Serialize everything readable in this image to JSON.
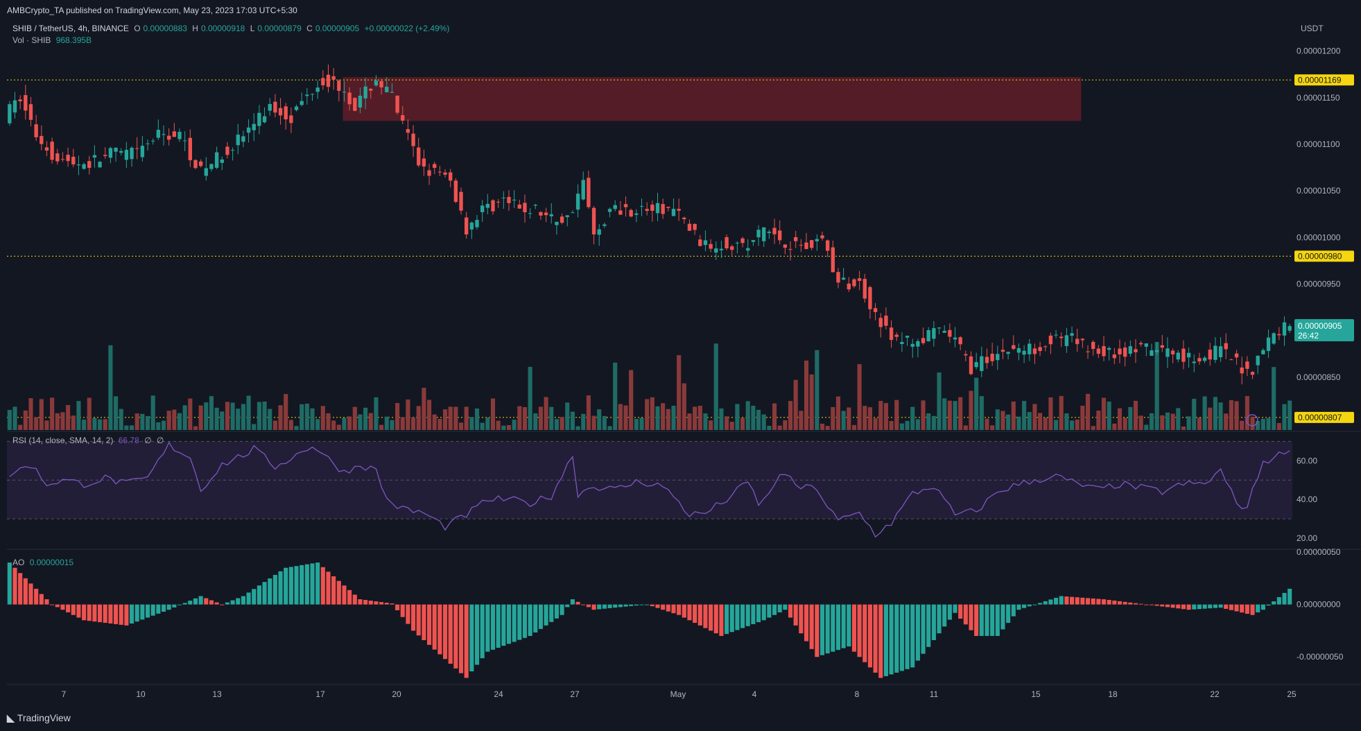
{
  "header": {
    "published": "AMBCrypto_TA published on TradingView.com, May 23, 2023 17:03 UTC+5:30",
    "symbol": "SHIB / TetherUS, 4h, BINANCE",
    "o_label": "O",
    "o": "0.00000883",
    "h_label": "H",
    "h": "0.00000918",
    "l_label": "L",
    "l": "0.00000879",
    "c_label": "C",
    "c": "0.00000905",
    "change": "+0.00000022 (+2.49%)",
    "vol_label": "Vol · SHIB",
    "vol": "968.395B",
    "currency": "USDT"
  },
  "rsi_legend": {
    "label": "RSI (14, close, SMA, 14, 2)",
    "value": "66.78",
    "extra1": "∅",
    "extra2": "∅"
  },
  "ao_legend": {
    "label": "AO",
    "value": "0.00000015"
  },
  "footer": {
    "brand": "TradingView"
  },
  "colors": {
    "bg": "#131722",
    "up": "#26a69a",
    "down": "#ef5350",
    "vol_up": "#1f6b65",
    "vol_down": "#8a3a3a",
    "rsi_line": "#7e57c2",
    "rsi_band": "#2a2240",
    "level": "#f5d60f",
    "zone": "#6b1f2a"
  },
  "chart_data": [
    {
      "type": "candlestick",
      "title": "SHIB / TetherUS, 4h, BINANCE",
      "ylabel": "USDT",
      "ylim": [
        7.935e-06,
        1.2265e-05
      ],
      "x_ticks": [
        "7",
        "10",
        "13",
        "17",
        "20",
        "24",
        "27",
        "May",
        "4",
        "8",
        "11",
        "15",
        "18",
        "22",
        "25"
      ],
      "y_ticks": [
        "0.00001200",
        "0.00001150",
        "0.00001100",
        "0.00001050",
        "0.00001000",
        "0.00000950",
        "0.00000900",
        "0.00000850"
      ],
      "price_labels": [
        "0.00001169",
        "0.00000980",
        "0.00000905",
        "26:42",
        "0.00000807"
      ],
      "horizontal_levels": [
        1.169e-05,
        9.8e-06,
        8.07e-06
      ],
      "resistance_zone": {
        "top": 1.172e-05,
        "bottom": 1.125e-05,
        "x_start_label": "18",
        "x_end_label": "16"
      },
      "anchors": [
        [
          0,
          1.13e-05
        ],
        [
          3,
          1.15e-05
        ],
        [
          6,
          1.11e-05
        ],
        [
          9,
          1.09e-05
        ],
        [
          12,
          1.08e-05
        ],
        [
          16,
          1.08e-05
        ],
        [
          20,
          1.09e-05
        ],
        [
          25,
          1.09e-05
        ],
        [
          29,
          1.11e-05
        ],
        [
          33,
          1.11e-05
        ],
        [
          37,
          1.07e-05
        ],
        [
          41,
          1.09e-05
        ],
        [
          45,
          1.11e-05
        ],
        [
          50,
          1.14e-05
        ],
        [
          54,
          1.13e-05
        ],
        [
          58,
          1.16e-05
        ],
        [
          60,
          1.17e-05
        ],
        [
          64,
          1.16e-05
        ],
        [
          66,
          1.14e-05
        ],
        [
          70,
          1.17e-05
        ],
        [
          73,
          1.15e-05
        ],
        [
          75,
          1.12e-05
        ],
        [
          78,
          1.08e-05
        ],
        [
          81,
          1.07e-05
        ],
        [
          84,
          1.06e-05
        ],
        [
          87,
          1.01e-05
        ],
        [
          90,
          1.03e-05
        ],
        [
          94,
          1.04e-05
        ],
        [
          97,
          1.03e-05
        ],
        [
          100,
          1.03e-05
        ],
        [
          103,
          1.02e-05
        ],
        [
          106,
          1.02e-05
        ],
        [
          109,
          1.06e-05
        ],
        [
          111,
          1e-05
        ],
        [
          114,
          1.03e-05
        ],
        [
          118,
          1.03e-05
        ],
        [
          122,
          1.03e-05
        ],
        [
          126,
          1.03e-05
        ],
        [
          129,
          1.01e-05
        ],
        [
          132,
          9.9e-06
        ],
        [
          136,
          9.95e-06
        ],
        [
          140,
          9.9e-06
        ],
        [
          143,
          1.01e-05
        ],
        [
          147,
          9.95e-06
        ],
        [
          151,
          9.9e-06
        ],
        [
          154,
          1e-05
        ],
        [
          157,
          9.5e-06
        ],
        [
          161,
          9.5e-06
        ],
        [
          164,
          9.2e-06
        ],
        [
          167,
          8.9e-06
        ],
        [
          170,
          8.9e-06
        ],
        [
          173,
          8.9e-06
        ],
        [
          176,
          9e-06
        ],
        [
          179,
          8.9e-06
        ],
        [
          182,
          8.6e-06
        ],
        [
          185,
          8.7e-06
        ],
        [
          189,
          8.8e-06
        ],
        [
          193,
          8.8e-06
        ],
        [
          197,
          8.9e-06
        ],
        [
          201,
          8.9e-06
        ],
        [
          205,
          8.8e-06
        ],
        [
          209,
          8.75e-06
        ],
        [
          213,
          8.8e-06
        ],
        [
          217,
          8.8e-06
        ],
        [
          221,
          8.75e-06
        ],
        [
          225,
          8.7e-06
        ],
        [
          229,
          8.8e-06
        ],
        [
          233,
          8.6e-06
        ],
        [
          235,
          8.6e-06
        ],
        [
          238,
          8.9e-06
        ],
        [
          241,
          9.05e-06
        ]
      ],
      "rsi": {
        "ylim": [
          15,
          73
        ],
        "y_ticks": [
          "60.00",
          "40.00",
          "20.00"
        ],
        "band": [
          30,
          70
        ],
        "mid": 50,
        "anchors": [
          [
            0,
            53
          ],
          [
            4,
            58
          ],
          [
            7,
            48
          ],
          [
            10,
            50
          ],
          [
            14,
            48
          ],
          [
            18,
            51
          ],
          [
            22,
            48
          ],
          [
            26,
            51
          ],
          [
            30,
            68
          ],
          [
            34,
            62
          ],
          [
            36,
            45
          ],
          [
            40,
            58
          ],
          [
            44,
            63
          ],
          [
            46,
            66
          ],
          [
            50,
            57
          ],
          [
            54,
            63
          ],
          [
            57,
            68
          ],
          [
            60,
            61
          ],
          [
            63,
            54
          ],
          [
            66,
            58
          ],
          [
            69,
            55
          ],
          [
            71,
            40
          ],
          [
            74,
            35
          ],
          [
            78,
            33
          ],
          [
            82,
            26
          ],
          [
            86,
            32
          ],
          [
            90,
            40
          ],
          [
            94,
            40
          ],
          [
            98,
            38
          ],
          [
            102,
            42
          ],
          [
            106,
            63
          ],
          [
            107,
            43
          ],
          [
            110,
            47
          ],
          [
            114,
            45
          ],
          [
            118,
            49
          ],
          [
            122,
            48
          ],
          [
            125,
            42
          ],
          [
            128,
            32
          ],
          [
            131,
            33
          ],
          [
            135,
            40
          ],
          [
            139,
            49
          ],
          [
            141,
            38
          ],
          [
            143,
            42
          ],
          [
            145,
            54
          ],
          [
            149,
            46
          ],
          [
            152,
            46
          ],
          [
            154,
            36
          ],
          [
            156,
            29
          ],
          [
            160,
            33
          ],
          [
            163,
            22
          ],
          [
            166,
            28
          ],
          [
            170,
            43
          ],
          [
            174,
            47
          ],
          [
            178,
            32
          ],
          [
            182,
            34
          ],
          [
            186,
            44
          ],
          [
            189,
            47
          ],
          [
            193,
            50
          ],
          [
            197,
            52
          ],
          [
            201,
            48
          ],
          [
            205,
            45
          ],
          [
            209,
            48
          ],
          [
            213,
            46
          ],
          [
            217,
            44
          ],
          [
            221,
            48
          ],
          [
            225,
            48
          ],
          [
            228,
            55
          ],
          [
            231,
            38
          ],
          [
            233,
            36
          ],
          [
            236,
            60
          ],
          [
            238,
            61
          ],
          [
            241,
            67
          ]
        ]
      },
      "ao": {
        "ylim": [
          -7.5e-07,
          5e-07
        ],
        "y_ticks": [
          "0.00000050",
          "0.00000000",
          "-0.00000050"
        ],
        "anchors": [
          [
            0,
            4e-07
          ],
          [
            4,
            2e-07
          ],
          [
            8,
            0.0
          ],
          [
            14,
            -1.5e-07
          ],
          [
            22,
            -2e-07
          ],
          [
            30,
            -5e-08
          ],
          [
            36,
            8e-08
          ],
          [
            40,
            0.0
          ],
          [
            44,
            8e-08
          ],
          [
            52,
            3.5e-07
          ],
          [
            58,
            4e-07
          ],
          [
            66,
            5e-08
          ],
          [
            72,
            1e-08
          ],
          [
            76,
            -2.5e-07
          ],
          [
            86,
            -7e-07
          ],
          [
            90,
            -4.5e-07
          ],
          [
            98,
            -3e-07
          ],
          [
            104,
            -1e-07
          ],
          [
            106,
            5e-08
          ],
          [
            110,
            -5e-08
          ],
          [
            120,
            0.0
          ],
          [
            126,
            -1e-07
          ],
          [
            134,
            -3e-07
          ],
          [
            142,
            -1.5e-07
          ],
          [
            146,
            -5e-08
          ],
          [
            152,
            -5e-07
          ],
          [
            158,
            -4e-07
          ],
          [
            164,
            -7e-07
          ],
          [
            170,
            -6e-07
          ],
          [
            178,
            -8e-08
          ],
          [
            182,
            -3e-07
          ],
          [
            186,
            -3e-07
          ],
          [
            190,
            -5e-08
          ],
          [
            198,
            8e-08
          ],
          [
            206,
            5e-08
          ],
          [
            214,
            0.0
          ],
          [
            222,
            -5e-08
          ],
          [
            228,
            -3e-08
          ],
          [
            234,
            -1e-07
          ],
          [
            236,
            -5e-08
          ],
          [
            241,
            1.5e-07
          ]
        ]
      }
    }
  ]
}
